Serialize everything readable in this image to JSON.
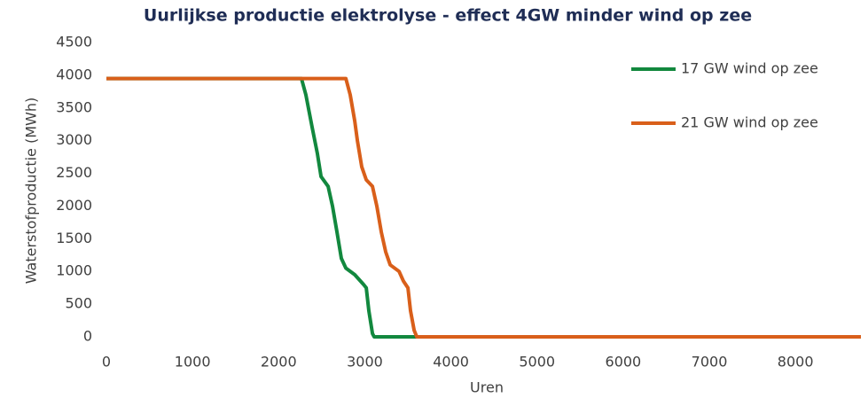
{
  "chart_data": {
    "type": "line",
    "title": "Uurlijkse productie elektrolyse - effect 4GW minder wind op zee",
    "x_label": "Uren",
    "y_label": "Waterstofproductie (MWh)",
    "xlim": [
      0,
      8760
    ],
    "ylim": [
      0,
      4500
    ],
    "xticks": [
      0,
      1000,
      2000,
      3000,
      4000,
      5000,
      6000,
      7000,
      8000
    ],
    "yticks": [
      0,
      500,
      1000,
      1500,
      2000,
      2500,
      3000,
      3500,
      4000,
      4500
    ],
    "legend": "upper right",
    "series": [
      {
        "name": "17 GW wind op zee",
        "color": "#12883e",
        "x": [
          0,
          2265,
          2316,
          2389,
          2450,
          2492,
          2574,
          2625,
          2677,
          2728,
          2780,
          2883,
          2986,
          3017,
          3047,
          3089,
          3109,
          8760
        ],
        "values": [
          3950,
          3950,
          3700,
          3200,
          2800,
          2450,
          2300,
          2000,
          1600,
          1200,
          1050,
          950,
          800,
          750,
          400,
          50,
          0,
          0
        ]
      },
      {
        "name": "21 GW wind op zee",
        "color": "#d95f1a",
        "x": [
          0,
          2780,
          2831,
          2883,
          2914,
          2965,
          3017,
          3089,
          3140,
          3192,
          3243,
          3295,
          3398,
          3449,
          3501,
          3531,
          3573,
          3604,
          8760
        ],
        "values": [
          3950,
          3950,
          3700,
          3300,
          3000,
          2600,
          2400,
          2300,
          2000,
          1600,
          1300,
          1100,
          1000,
          850,
          750,
          400,
          100,
          0,
          0
        ]
      }
    ]
  }
}
